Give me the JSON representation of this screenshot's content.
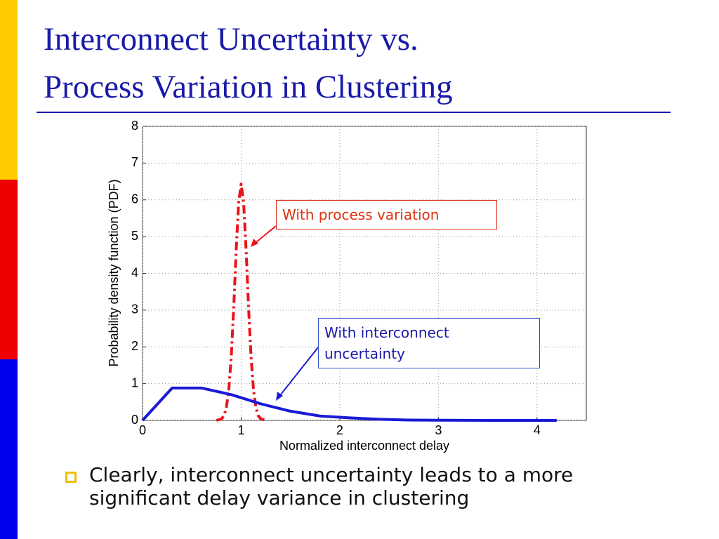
{
  "slide": {
    "title_lines": [
      "Interconnect Uncertainty vs.",
      "Process Variation in Clustering"
    ],
    "bullet": "Clearly, interconnect uncertainty leads to a more significant delay variance in clustering"
  },
  "chart_data": {
    "type": "line",
    "xlabel": "Normalized interconnect delay",
    "ylabel": "Probability density function (PDF)",
    "xlim": [
      0,
      4.5
    ],
    "xticks": [
      0,
      1,
      2,
      3,
      4
    ],
    "ylim": [
      0,
      8
    ],
    "yticks": [
      0,
      1,
      2,
      3,
      4,
      5,
      6,
      7,
      8
    ],
    "grid": true,
    "series": [
      {
        "name": "With process variation",
        "color": "#e8141c",
        "linestyle": "dashdot",
        "x": [
          0.75,
          0.8,
          0.825,
          0.85,
          0.875,
          0.9,
          0.925,
          0.95,
          0.975,
          1,
          1.025,
          1.05,
          1.075,
          1.1,
          1.125,
          1.15,
          1.175,
          1.2,
          1.25
        ],
        "values": [
          0,
          0.04,
          0.12,
          0.34,
          0.84,
          1.75,
          3.09,
          4.65,
          5.93,
          6.43,
          5.93,
          4.65,
          3.09,
          1.75,
          0.84,
          0.34,
          0.12,
          0.04,
          0
        ]
      },
      {
        "name": "With interconnect uncertainty",
        "color": "#1a1ad6",
        "linestyle": "solid",
        "x": [
          0,
          0.3,
          0.6,
          0.9,
          1.2,
          1.5,
          1.8,
          2.1,
          2.4,
          2.7,
          3.0,
          3.5,
          4.2
        ],
        "values": [
          0,
          0.88,
          0.88,
          0.7,
          0.45,
          0.25,
          0.12,
          0.07,
          0.03,
          0.01,
          0.005,
          0,
          0
        ]
      }
    ]
  }
}
